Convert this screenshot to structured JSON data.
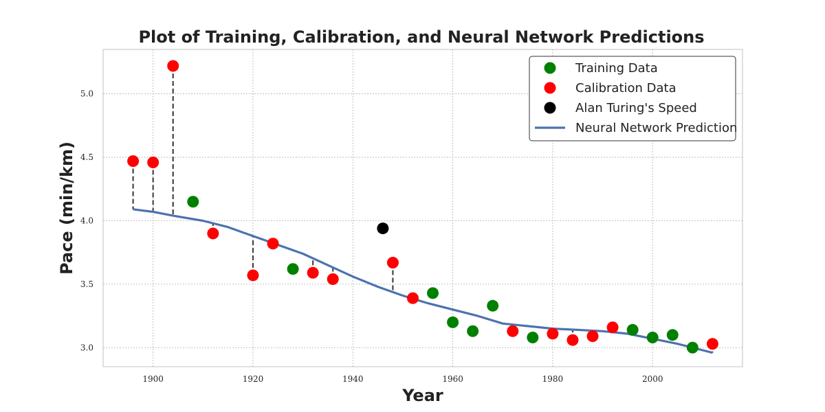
{
  "chart_data": {
    "type": "scatter",
    "title": "Plot of Training, Calibration, and Neural Network Predictions",
    "xlabel": "Year",
    "ylabel": "Pace (min/km)",
    "xlim": [
      1890,
      2018
    ],
    "ylim": [
      2.85,
      5.35
    ],
    "xticks": [
      1900,
      1920,
      1940,
      1960,
      1980,
      2000
    ],
    "yticks": [
      3.0,
      3.5,
      4.0,
      4.5,
      5.0
    ],
    "ytick_labels": [
      "3.0",
      "3.5",
      "4.0",
      "4.5",
      "5.0"
    ],
    "grid": true,
    "legend_position": "top-right",
    "colors": {
      "training": "#008000",
      "calibration": "#ff0000",
      "turing": "#000000",
      "prediction": "#4c72b0",
      "residual": "#444444"
    },
    "legend": [
      {
        "label": "Training Data",
        "kind": "marker",
        "color": "#008000"
      },
      {
        "label": "Calibration Data",
        "kind": "marker",
        "color": "#ff0000"
      },
      {
        "label": "Alan Turing's Speed",
        "kind": "marker",
        "color": "#000000"
      },
      {
        "label": "Neural Network Prediction",
        "kind": "line",
        "color": "#4c72b0"
      }
    ],
    "series": [
      {
        "name": "Training Data",
        "x": [
          1908,
          1928,
          1956,
          1960,
          1964,
          1968,
          1976,
          1996,
          2000,
          2004,
          2008
        ],
        "y": [
          4.15,
          3.62,
          3.43,
          3.2,
          3.13,
          3.33,
          3.08,
          3.14,
          3.08,
          3.1,
          3.0
        ]
      },
      {
        "name": "Calibration Data",
        "x": [
          1896,
          1900,
          1904,
          1912,
          1920,
          1924,
          1932,
          1936,
          1948,
          1952,
          1972,
          1980,
          1984,
          1988,
          1992,
          2012
        ],
        "y": [
          4.47,
          4.46,
          5.22,
          3.9,
          3.57,
          3.82,
          3.59,
          3.54,
          3.67,
          3.39,
          3.13,
          3.11,
          3.06,
          3.09,
          3.16,
          3.03
        ]
      },
      {
        "name": "Alan Turing's Speed",
        "x": [
          1946
        ],
        "y": [
          3.94
        ]
      },
      {
        "name": "Neural Network Prediction",
        "x": [
          1896,
          1900,
          1904,
          1910,
          1915,
          1920,
          1925,
          1930,
          1935,
          1940,
          1945,
          1950,
          1955,
          1960,
          1965,
          1970,
          1975,
          1980,
          1985,
          1990,
          1995,
          2000,
          2005,
          2010,
          2012
        ],
        "y": [
          4.09,
          4.07,
          4.04,
          4.0,
          3.95,
          3.88,
          3.81,
          3.74,
          3.65,
          3.56,
          3.48,
          3.41,
          3.35,
          3.3,
          3.25,
          3.19,
          3.17,
          3.15,
          3.14,
          3.13,
          3.11,
          3.07,
          3.03,
          2.98,
          2.96
        ]
      }
    ]
  }
}
